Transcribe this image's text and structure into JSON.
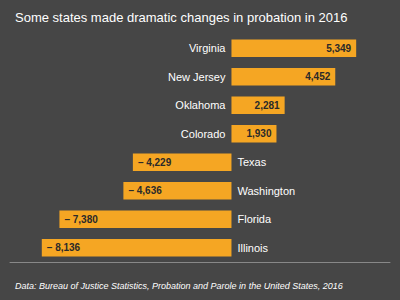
{
  "chart_data": {
    "type": "bar",
    "orientation": "horizontal",
    "title": "Some states made dramatic changes in probation in 2016",
    "annotations": [
      "Data: Bureau of Justice Statistics, Probation and Parole in the United States, 2016"
    ],
    "categories": [
      "Virginia",
      "New Jersey",
      "Oklahoma",
      "Colorado",
      "Texas",
      "Washington",
      "Florida",
      "Illinois"
    ],
    "values": [
      5349,
      4452,
      2281,
      1930,
      -4229,
      -4636,
      -7380,
      -8136
    ],
    "value_labels": [
      "5,349",
      "4,452",
      "2,281",
      "1,930",
      "– 4,229",
      "– 4,636",
      "– 7,380",
      "– 8,136"
    ],
    "color": "#F5A623",
    "xlim": [
      -9500,
      6800
    ],
    "tick_labels": false,
    "grid": false,
    "data_labels": true
  }
}
